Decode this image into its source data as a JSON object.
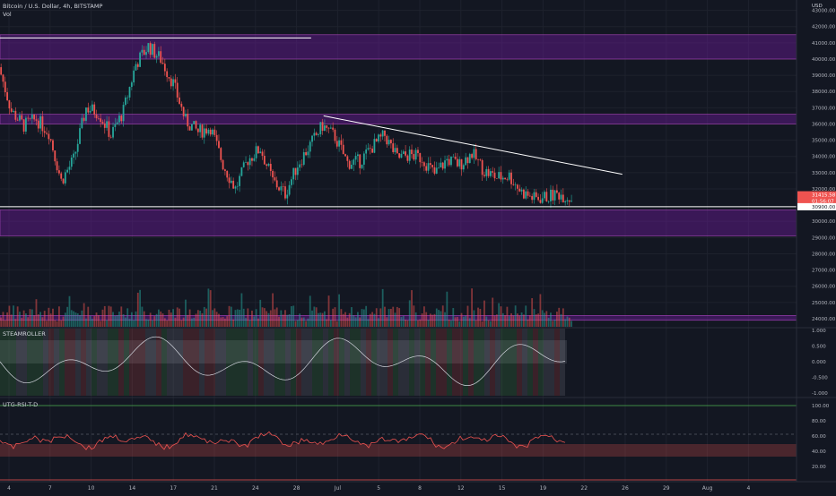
{
  "header": {
    "symbol_line": "Bitcoin / U.S. Dollar, 4h, BITSTAMP",
    "vol_label": "Vol",
    "currency": "USD"
  },
  "price_axis": {
    "ticks": [
      "43000.00",
      "42000.00",
      "41000.00",
      "40000.00",
      "39000.00",
      "38000.00",
      "37000.00",
      "36000.00",
      "35000.00",
      "34000.00",
      "33000.00",
      "32000.00",
      "30000.00",
      "29000.00",
      "28000.00",
      "27000.00",
      "26000.00",
      "25000.00",
      "24000.00"
    ],
    "last_price": "31415.58",
    "countdown": "01:56:07",
    "level_tag": "30900.00"
  },
  "indicators": {
    "steamroller": {
      "name": "STEAMROLLER",
      "ticks": [
        "1.000",
        "0.500",
        "0.000",
        "-0.500",
        "-1.000"
      ]
    },
    "rsi": {
      "name": "UTG-RSI-T-D",
      "ticks": [
        "100.00",
        "80.00",
        "60.00",
        "40.00",
        "20.00"
      ]
    }
  },
  "time_axis": {
    "labels": [
      "4",
      "7",
      "10",
      "14",
      "17",
      "21",
      "24",
      "28",
      "Jul",
      "5",
      "8",
      "12",
      "15",
      "19",
      "22",
      "26",
      "29",
      "Aug",
      "4"
    ]
  },
  "chart_data": {
    "type": "candlestick",
    "symbol": "BTCUSD",
    "timeframe": "4h",
    "exchange": "BITSTAMP",
    "y_range": [
      23500,
      43200
    ],
    "x_range": [
      "2021-06-03",
      "2021-08-06"
    ],
    "close_path": [
      [
        "2021-06-03",
        39500
      ],
      [
        "2021-06-04",
        36800
      ],
      [
        "2021-06-05",
        35900
      ],
      [
        "2021-06-06",
        36300
      ],
      [
        "2021-06-07",
        35500
      ],
      [
        "2021-06-08",
        32500
      ],
      [
        "2021-06-09",
        33800
      ],
      [
        "2021-06-10",
        37000
      ],
      [
        "2021-06-11",
        36700
      ],
      [
        "2021-06-12",
        35300
      ],
      [
        "2021-06-13",
        36800
      ],
      [
        "2021-06-14",
        39700
      ],
      [
        "2021-06-15",
        40800
      ],
      [
        "2021-06-16",
        40000
      ],
      [
        "2021-06-17",
        38500
      ],
      [
        "2021-06-18",
        36200
      ],
      [
        "2021-06-19",
        35500
      ],
      [
        "2021-06-20",
        35800
      ],
      [
        "2021-06-21",
        33500
      ],
      [
        "2021-06-22",
        32000
      ],
      [
        "2021-06-23",
        33800
      ],
      [
        "2021-06-24",
        34500
      ],
      [
        "2021-06-25",
        32500
      ],
      [
        "2021-06-26",
        31700
      ],
      [
        "2021-06-27",
        33500
      ],
      [
        "2021-06-28",
        34700
      ],
      [
        "2021-06-29",
        35900
      ],
      [
        "2021-06-30",
        35200
      ],
      [
        "2021-07-01",
        33600
      ],
      [
        "2021-07-02",
        33700
      ],
      [
        "2021-07-03",
        34600
      ],
      [
        "2021-07-04",
        35300
      ],
      [
        "2021-07-05",
        33900
      ],
      [
        "2021-07-06",
        34100
      ],
      [
        "2021-07-07",
        33900
      ],
      [
        "2021-07-08",
        32900
      ],
      [
        "2021-07-09",
        33800
      ],
      [
        "2021-07-10",
        33500
      ],
      [
        "2021-07-11",
        34200
      ],
      [
        "2021-07-12",
        33100
      ],
      [
        "2021-07-13",
        32700
      ],
      [
        "2021-07-14",
        32800
      ],
      [
        "2021-07-15",
        31800
      ],
      [
        "2021-07-16",
        31400
      ],
      [
        "2021-07-17",
        31500
      ],
      [
        "2021-07-18",
        31700
      ],
      [
        "2021-07-19",
        31400
      ]
    ],
    "horizontal_zones": [
      {
        "from": 40000,
        "to": 41500,
        "color": "#6a1b9a"
      },
      {
        "from": 36000,
        "to": 36600,
        "color": "#6a1b9a"
      },
      {
        "from": 29100,
        "to": 30700,
        "color": "#6a1b9a"
      },
      {
        "from": 23900,
        "to": 24200,
        "color": "#6a1b9a"
      }
    ],
    "trendlines": [
      {
        "from": [
          "2021-06-03",
          41300
        ],
        "to": [
          "2021-06-28",
          41300
        ]
      },
      {
        "from": [
          "2021-06-29",
          36500
        ],
        "to": [
          "2021-07-23",
          32900
        ]
      },
      {
        "from": [
          "2021-06-03",
          30900
        ],
        "to": [
          "2021-08-06",
          30900
        ]
      }
    ]
  },
  "colors": {
    "background": "#131722",
    "up": "#26a69a",
    "down": "#ef5350",
    "zone": "#6a1b9a",
    "last_price_tag": "#ef5350"
  }
}
